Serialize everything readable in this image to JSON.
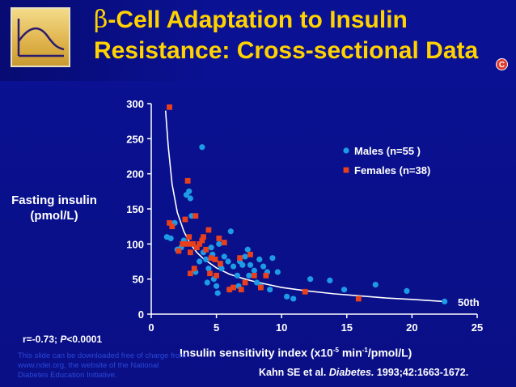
{
  "slide": {
    "title_beta": "β",
    "title_rest": "-Cell Adaptation to Insulin",
    "title_line2": "Resistance: Cross-sectional Data",
    "badge": "C",
    "stat_r": "r=-0.73; ",
    "stat_p_label": "P",
    "stat_p_value": "<0.0001",
    "watermark": "This slide can be downloaded free of charge from www.ndei.org, the website of the National Diabetes Education Initiative.",
    "citation_authors": "Kahn SE et al. ",
    "citation_journal": "Diabetes.",
    "citation_ref": " 1993;42:1663-1672."
  },
  "colors": {
    "background": "#0a0f8c",
    "title": "#ffd200",
    "males": "#1e9be6",
    "females": "#e8401c",
    "curve": "#ffffff"
  },
  "chart_data": {
    "type": "scatter",
    "xlabel_main": "Insulin sensitivity index (x10",
    "xlabel_sup1": "-5",
    "xlabel_mid": " min",
    "xlabel_sup2": "-1",
    "xlabel_end": "/pmol/L)",
    "ylabel_line1": "Fasting insulin",
    "ylabel_line2": "(pmol/L)",
    "xlim": [
      0,
      25
    ],
    "ylim": [
      0,
      300
    ],
    "x_ticks": [
      0,
      5,
      10,
      15,
      20,
      25
    ],
    "y_ticks": [
      0,
      50,
      100,
      150,
      200,
      250,
      300
    ],
    "grid": false,
    "legend_position": "top-right",
    "curve_label": "50th",
    "curve": {
      "x": [
        1.1,
        1.3,
        1.6,
        2.0,
        2.5,
        3.0,
        3.5,
        4.0,
        5.0,
        6.0,
        7.0,
        8.0,
        10.0,
        12.0,
        14.0,
        16.0,
        18.0,
        20.0,
        22.5
      ],
      "y": [
        290,
        240,
        185,
        145,
        118,
        100,
        88,
        79,
        66,
        57,
        51,
        46,
        38,
        33,
        29,
        26,
        23,
        21,
        18
      ]
    },
    "series": [
      {
        "name": "Males (n=55 )",
        "marker": "circle",
        "points": [
          [
            1.2,
            110
          ],
          [
            1.5,
            108
          ],
          [
            1.8,
            130
          ],
          [
            2.0,
            92
          ],
          [
            2.3,
            95
          ],
          [
            2.5,
            105
          ],
          [
            2.7,
            170
          ],
          [
            2.9,
            175
          ],
          [
            3.0,
            165
          ],
          [
            3.1,
            140
          ],
          [
            3.4,
            60
          ],
          [
            3.7,
            75
          ],
          [
            3.9,
            238
          ],
          [
            4.0,
            88
          ],
          [
            4.2,
            78
          ],
          [
            4.3,
            45
          ],
          [
            4.4,
            65
          ],
          [
            4.6,
            95
          ],
          [
            4.8,
            50
          ],
          [
            5.0,
            40
          ],
          [
            5.1,
            30
          ],
          [
            5.3,
            70
          ],
          [
            5.4,
            65
          ],
          [
            5.6,
            82
          ],
          [
            5.9,
            75
          ],
          [
            6.0,
            35
          ],
          [
            6.1,
            118
          ],
          [
            6.3,
            68
          ],
          [
            6.6,
            55
          ],
          [
            6.8,
            75
          ],
          [
            7.0,
            70
          ],
          [
            7.2,
            82
          ],
          [
            7.4,
            92
          ],
          [
            7.5,
            55
          ],
          [
            7.6,
            70
          ],
          [
            7.9,
            62
          ],
          [
            8.1,
            45
          ],
          [
            8.3,
            78
          ],
          [
            8.6,
            68
          ],
          [
            8.9,
            60
          ],
          [
            9.1,
            35
          ],
          [
            9.3,
            80
          ],
          [
            9.7,
            60
          ],
          [
            10.4,
            25
          ],
          [
            10.9,
            22
          ],
          [
            12.2,
            50
          ],
          [
            13.7,
            48
          ],
          [
            14.8,
            35
          ],
          [
            17.2,
            42
          ],
          [
            19.6,
            33
          ],
          [
            22.5,
            18
          ],
          [
            4.7,
            85
          ],
          [
            6.7,
            40
          ],
          [
            8.4,
            40
          ],
          [
            5.2,
            100
          ]
        ]
      },
      {
        "name": "Females (n=38)",
        "marker": "square",
        "points": [
          [
            1.4,
            295
          ],
          [
            1.4,
            130
          ],
          [
            1.6,
            125
          ],
          [
            2.1,
            90
          ],
          [
            2.4,
            100
          ],
          [
            2.6,
            135
          ],
          [
            2.8,
            190
          ],
          [
            2.9,
            110
          ],
          [
            3.0,
            88
          ],
          [
            3.2,
            100
          ],
          [
            3.4,
            140
          ],
          [
            3.5,
            95
          ],
          [
            3.7,
            100
          ],
          [
            3.9,
            105
          ],
          [
            4.2,
            92
          ],
          [
            4.4,
            120
          ],
          [
            4.6,
            80
          ],
          [
            4.9,
            78
          ],
          [
            5.0,
            55
          ],
          [
            5.3,
            72
          ],
          [
            5.6,
            102
          ],
          [
            6.0,
            35
          ],
          [
            6.3,
            38
          ],
          [
            6.8,
            80
          ],
          [
            7.2,
            45
          ],
          [
            7.6,
            85
          ],
          [
            7.9,
            55
          ],
          [
            8.4,
            38
          ],
          [
            8.8,
            55
          ],
          [
            11.8,
            32
          ],
          [
            15.9,
            22
          ],
          [
            3.0,
            58
          ],
          [
            3.3,
            65
          ],
          [
            4.0,
            110
          ],
          [
            5.2,
            108
          ],
          [
            6.9,
            35
          ],
          [
            2.8,
            100
          ],
          [
            4.5,
            58
          ]
        ]
      }
    ]
  }
}
